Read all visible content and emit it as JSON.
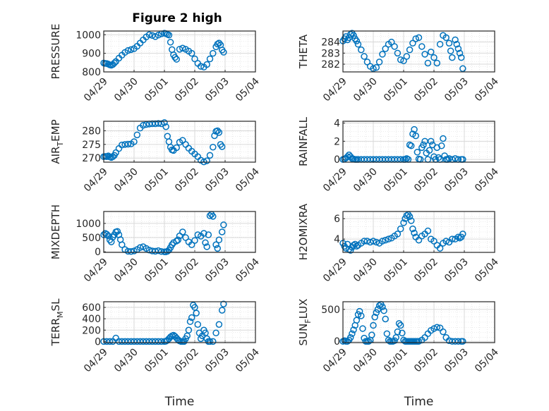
{
  "figure": {
    "title": "Figure 2 high",
    "marker_color": "#0072BD",
    "grid_color": "#d9d9d9"
  },
  "x_axis": {
    "ticks": [
      "04/29",
      "04/30",
      "05/01",
      "05/02",
      "05/03",
      "05/04"
    ],
    "label": "Time"
  },
  "chart_data": [
    {
      "type": "scatter",
      "title": "Figure 2 high",
      "ylabel": "PRESSURE",
      "ylim": [
        800,
        1020
      ],
      "yticks": [
        800,
        900,
        1000
      ],
      "ytick_labels": [
        "800",
        "900",
        "1000"
      ],
      "xlim": [
        0,
        5
      ],
      "grid": true,
      "x": [
        0,
        0.05,
        0.1,
        0.15,
        0.2,
        0.25,
        0.3,
        0.35,
        0.4,
        0.5,
        0.6,
        0.7,
        0.8,
        0.9,
        1.0,
        1.1,
        1.2,
        1.3,
        1.4,
        1.5,
        1.6,
        1.7,
        1.8,
        1.9,
        2.0,
        2.05,
        2.1,
        2.15,
        2.2,
        2.25,
        2.3,
        2.35,
        2.4,
        2.5,
        2.6,
        2.7,
        2.8,
        2.9,
        3.0,
        3.1,
        3.2,
        3.3,
        3.4,
        3.5,
        3.6,
        3.7,
        3.75,
        3.8,
        3.85,
        3.9,
        3.95
      ],
      "y": [
        848,
        846,
        845,
        842,
        838,
        836,
        840,
        848,
        856,
        874,
        890,
        905,
        915,
        920,
        925,
        938,
        955,
        972,
        988,
        1000,
        996,
        990,
        998,
        1005,
        1008,
        1006,
        1002,
        998,
        960,
        920,
        892,
        878,
        868,
        922,
        928,
        922,
        912,
        900,
        870,
        846,
        830,
        826,
        840,
        870,
        900,
        935,
        950,
        955,
        945,
        918,
        906
      ]
    },
    {
      "type": "scatter",
      "ylabel": "THETA",
      "ylim": [
        281.3,
        285.0
      ],
      "yticks": [
        282,
        283,
        284
      ],
      "ytick_labels": [
        "282",
        "283",
        "284"
      ],
      "xlim": [
        0,
        5
      ],
      "grid": true,
      "x": [
        0,
        0.05,
        0.1,
        0.15,
        0.2,
        0.25,
        0.3,
        0.35,
        0.4,
        0.45,
        0.5,
        0.6,
        0.7,
        0.8,
        0.9,
        1.0,
        1.1,
        1.2,
        1.3,
        1.4,
        1.5,
        1.6,
        1.7,
        1.8,
        1.9,
        2.0,
        2.1,
        2.2,
        2.3,
        2.4,
        2.5,
        2.6,
        2.7,
        2.8,
        2.9,
        3.0,
        3.1,
        3.2,
        3.3,
        3.4,
        3.5,
        3.55,
        3.6,
        3.7,
        3.75,
        3.8,
        3.85,
        3.9,
        3.95
      ],
      "y": [
        284.1,
        284.3,
        284.5,
        284.2,
        284.4,
        284.7,
        284.8,
        284.6,
        284.3,
        284.1,
        283.8,
        283.3,
        282.7,
        282.2,
        281.8,
        281.6,
        281.7,
        282.2,
        282.9,
        283.4,
        283.8,
        284.0,
        283.6,
        283.0,
        282.4,
        282.3,
        282.7,
        283.3,
        283.9,
        284.3,
        284.4,
        283.6,
        282.9,
        282.1,
        283.1,
        282.6,
        282.1,
        283.8,
        284.6,
        284.4,
        283.9,
        283.2,
        282.6,
        284.2,
        283.8,
        283.4,
        283.0,
        282.6,
        281.6
      ]
    },
    {
      "type": "scatter",
      "ylabel": "AIR_TEMP",
      "ylim": [
        268.5,
        283.5
      ],
      "yticks": [
        270,
        275,
        280
      ],
      "ytick_labels": [
        "270",
        "275",
        "280"
      ],
      "xlim": [
        0,
        5
      ],
      "grid": true,
      "x": [
        0,
        0.05,
        0.1,
        0.15,
        0.2,
        0.25,
        0.3,
        0.35,
        0.4,
        0.5,
        0.6,
        0.7,
        0.8,
        0.9,
        1.0,
        1.1,
        1.2,
        1.3,
        1.4,
        1.5,
        1.6,
        1.7,
        1.8,
        1.9,
        2.0,
        2.05,
        2.1,
        2.15,
        2.2,
        2.25,
        2.3,
        2.4,
        2.5,
        2.6,
        2.7,
        2.8,
        2.9,
        3.0,
        3.1,
        3.2,
        3.3,
        3.4,
        3.5,
        3.6,
        3.65,
        3.7,
        3.75,
        3.8,
        3.85,
        3.9
      ],
      "y": [
        270.5,
        270.6,
        270.5,
        270.8,
        270.4,
        270.2,
        270.5,
        271.0,
        272.0,
        273.5,
        274.8,
        275.0,
        275.1,
        275.2,
        276.0,
        278.5,
        281.0,
        282.0,
        282.3,
        282.5,
        282.6,
        282.6,
        282.7,
        282.6,
        283.0,
        281.5,
        278.0,
        276.0,
        274.0,
        273.0,
        272.8,
        273.8,
        275.8,
        276.5,
        275.0,
        273.6,
        272.5,
        271.5,
        270.5,
        269.2,
        268.6,
        269.0,
        271.0,
        274.0,
        278.2,
        279.8,
        280.0,
        279.4,
        275.0,
        274.2
      ]
    },
    {
      "type": "scatter",
      "ylabel": "RAINFALL",
      "ylim": [
        -0.3,
        4.2
      ],
      "yticks": [
        0,
        2,
        4
      ],
      "ytick_labels": [
        "0",
        "2",
        "4"
      ],
      "xlim": [
        0,
        5
      ],
      "grid": true,
      "x": [
        0,
        0.05,
        0.1,
        0.15,
        0.2,
        0.25,
        0.3,
        0.35,
        0.4,
        0.45,
        0.5,
        0.6,
        0.7,
        0.8,
        0.9,
        1.0,
        1.1,
        1.2,
        1.3,
        1.4,
        1.5,
        1.6,
        1.7,
        1.8,
        1.9,
        2.0,
        2.05,
        2.1,
        2.15,
        2.2,
        2.25,
        2.3,
        2.35,
        2.4,
        2.45,
        2.5,
        2.55,
        2.6,
        2.65,
        2.7,
        2.75,
        2.8,
        2.85,
        2.9,
        2.95,
        3.0,
        3.05,
        3.1,
        3.15,
        3.2,
        3.25,
        3.3,
        3.35,
        3.4,
        3.45,
        3.5,
        3.6,
        3.7,
        3.8,
        3.9,
        3.95
      ],
      "y": [
        0,
        0.05,
        0.15,
        0.3,
        0.5,
        0.3,
        0.1,
        0.05,
        0,
        0,
        0,
        0,
        0,
        0,
        0,
        0,
        0,
        0,
        0,
        0,
        0,
        0,
        0,
        0,
        0,
        0,
        0,
        0.1,
        0,
        1.6,
        1.5,
        2.8,
        3.3,
        2.6,
        0.8,
        0.05,
        0,
        1.3,
        1.6,
        2.0,
        0.7,
        0,
        1.0,
        2.0,
        1.6,
        0.3,
        0,
        1.3,
        0.2,
        0,
        1.5,
        2.3,
        0.4,
        0,
        0,
        0.1,
        0,
        0.1,
        0,
        0,
        0
      ]
    },
    {
      "type": "scatter",
      "ylabel": "MIXDEPTH",
      "ylim": [
        -20,
        1420
      ],
      "yticks": [
        0,
        500,
        1000
      ],
      "ytick_labels": [
        "0",
        "500",
        "1000"
      ],
      "xlim": [
        0,
        5
      ],
      "grid": true,
      "x": [
        0,
        0.05,
        0.1,
        0.15,
        0.2,
        0.25,
        0.3,
        0.35,
        0.4,
        0.45,
        0.5,
        0.55,
        0.6,
        0.7,
        0.8,
        0.9,
        1.0,
        1.1,
        1.2,
        1.3,
        1.4,
        1.5,
        1.6,
        1.7,
        1.8,
        1.9,
        2.0,
        2.05,
        2.1,
        2.15,
        2.2,
        2.25,
        2.3,
        2.4,
        2.45,
        2.5,
        2.6,
        2.7,
        2.8,
        2.9,
        3.0,
        3.1,
        3.2,
        3.3,
        3.35,
        3.4,
        3.45,
        3.5,
        3.55,
        3.6,
        3.7,
        3.75,
        3.8,
        3.9,
        3.95
      ],
      "y": [
        600,
        650,
        620,
        560,
        420,
        350,
        520,
        600,
        700,
        720,
        600,
        430,
        250,
        80,
        20,
        10,
        30,
        80,
        150,
        180,
        120,
        60,
        30,
        20,
        40,
        10,
        0,
        0,
        20,
        60,
        150,
        250,
        320,
        380,
        420,
        560,
        700,
        500,
        350,
        250,
        400,
        600,
        550,
        650,
        320,
        180,
        600,
        1270,
        1320,
        1250,
        250,
        120,
        420,
        700,
        950
      ]
    },
    {
      "type": "scatter",
      "ylabel": "H2OMIXRA",
      "ylim": [
        2.7,
        6.7
      ],
      "yticks": [
        4,
        6
      ],
      "ytick_labels": [
        "4",
        "6"
      ],
      "xlim": [
        0,
        5
      ],
      "grid": true,
      "x": [
        0,
        0.05,
        0.1,
        0.15,
        0.2,
        0.25,
        0.3,
        0.35,
        0.4,
        0.45,
        0.5,
        0.6,
        0.7,
        0.8,
        0.9,
        1.0,
        1.1,
        1.2,
        1.3,
        1.4,
        1.5,
        1.6,
        1.7,
        1.8,
        1.9,
        2.0,
        2.05,
        2.1,
        2.15,
        2.2,
        2.25,
        2.3,
        2.35,
        2.4,
        2.5,
        2.6,
        2.7,
        2.8,
        2.9,
        3.0,
        3.1,
        3.2,
        3.3,
        3.4,
        3.5,
        3.6,
        3.7,
        3.8,
        3.85,
        3.9,
        3.95
      ],
      "y": [
        3.6,
        3.3,
        3.1,
        3.5,
        3.0,
        2.9,
        3.2,
        3.4,
        3.5,
        3.3,
        3.4,
        3.6,
        3.8,
        3.8,
        3.7,
        3.8,
        3.7,
        3.6,
        3.8,
        3.9,
        4.0,
        4.1,
        4.3,
        4.5,
        5.0,
        5.6,
        6.0,
        6.3,
        6.4,
        6.2,
        5.8,
        5.0,
        4.6,
        4.2,
        3.9,
        4.3,
        4.5,
        4.8,
        4.0,
        3.8,
        3.4,
        3.1,
        3.6,
        3.8,
        3.7,
        4.0,
        4.0,
        4.2,
        4.1,
        4.2,
        4.5
      ]
    },
    {
      "type": "scatter",
      "ylabel": "TERR_MSL",
      "ylim": [
        -20,
        700
      ],
      "yticks": [
        0,
        200,
        400,
        600
      ],
      "ytick_labels": [
        "0",
        "200",
        "400",
        "600"
      ],
      "xlim": [
        0,
        5
      ],
      "grid": true,
      "x": [
        0,
        0.1,
        0.2,
        0.3,
        0.4,
        0.5,
        0.6,
        0.7,
        0.8,
        0.9,
        1.0,
        1.1,
        1.2,
        1.3,
        1.4,
        1.5,
        1.6,
        1.7,
        1.8,
        1.9,
        2.0,
        2.05,
        2.1,
        2.15,
        2.2,
        2.25,
        2.3,
        2.35,
        2.4,
        2.45,
        2.5,
        2.55,
        2.6,
        2.65,
        2.7,
        2.75,
        2.8,
        2.85,
        2.9,
        2.95,
        3.0,
        3.05,
        3.1,
        3.15,
        3.2,
        3.25,
        3.3,
        3.35,
        3.4,
        3.45,
        3.5,
        3.6,
        3.7,
        3.8,
        3.9,
        3.95
      ],
      "y": [
        0,
        0,
        0,
        0,
        60,
        0,
        0,
        0,
        0,
        0,
        0,
        0,
        0,
        0,
        0,
        0,
        0,
        0,
        0,
        0,
        0,
        5,
        20,
        50,
        80,
        100,
        110,
        90,
        60,
        30,
        10,
        0,
        0,
        0,
        50,
        100,
        200,
        350,
        420,
        640,
        600,
        500,
        300,
        150,
        50,
        100,
        200,
        150,
        50,
        0,
        0,
        0,
        150,
        300,
        550,
        660
      ]
    },
    {
      "type": "scatter",
      "ylabel": "SUN_FLUX",
      "ylim": [
        -20,
        620
      ],
      "yticks": [
        0,
        500
      ],
      "ytick_labels": [
        "0",
        "500"
      ],
      "xlim": [
        0,
        5
      ],
      "grid": true,
      "x": [
        0,
        0.05,
        0.1,
        0.15,
        0.2,
        0.25,
        0.3,
        0.35,
        0.4,
        0.45,
        0.5,
        0.55,
        0.6,
        0.65,
        0.7,
        0.75,
        0.8,
        0.85,
        0.9,
        0.95,
        1.0,
        1.05,
        1.1,
        1.15,
        1.2,
        1.25,
        1.3,
        1.35,
        1.4,
        1.45,
        1.5,
        1.55,
        1.6,
        1.65,
        1.7,
        1.75,
        1.8,
        1.85,
        1.9,
        1.95,
        2.0,
        2.05,
        2.1,
        2.15,
        2.2,
        2.25,
        2.3,
        2.35,
        2.4,
        2.45,
        2.5,
        2.6,
        2.7,
        2.8,
        2.9,
        3.0,
        3.1,
        3.2,
        3.3,
        3.4,
        3.5,
        3.6,
        3.7,
        3.8,
        3.9,
        3.95
      ],
      "y": [
        0,
        10,
        0,
        0,
        20,
        60,
        120,
        180,
        250,
        330,
        420,
        470,
        400,
        200,
        50,
        0,
        0,
        0,
        20,
        100,
        250,
        380,
        450,
        500,
        560,
        580,
        540,
        480,
        350,
        120,
        20,
        0,
        0,
        0,
        10,
        60,
        150,
        280,
        250,
        130,
        20,
        0,
        0,
        0,
        0,
        0,
        0,
        0,
        0,
        0,
        0,
        20,
        60,
        120,
        170,
        200,
        220,
        210,
        150,
        60,
        10,
        0,
        0,
        0,
        0,
        0
      ]
    }
  ]
}
